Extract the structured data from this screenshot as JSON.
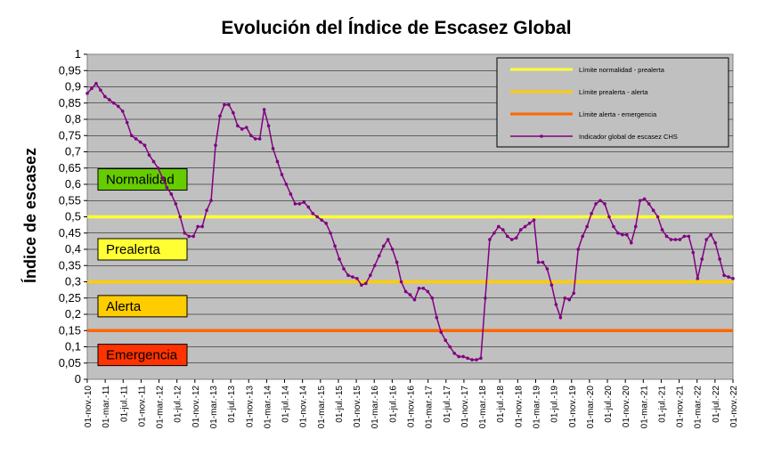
{
  "chart_data": {
    "type": "line",
    "title": "Evolución del Índice de Escasez Global",
    "ylabel": "Índice de escasez",
    "ylim": [
      0,
      1
    ],
    "y_ticks": [
      "0",
      "0,05",
      "0,1",
      "0,15",
      "0,2",
      "0,25",
      "0,3",
      "0,35",
      "0,4",
      "0,45",
      "0,5",
      "0,55",
      "0,6",
      "0,65",
      "0,7",
      "0,75",
      "0,8",
      "0,85",
      "0,9",
      "0,95",
      "1"
    ],
    "x_tick_labels": [
      "01-nov.-10",
      "01-mar.-11",
      "01-jul.-11",
      "01-nov.-11",
      "01-mar.-12",
      "01-jul.-12",
      "01-nov.-12",
      "01-mar.-13",
      "01-jul.-13",
      "01-nov.-13",
      "01-mar.-14",
      "01-jul.-14",
      "01-nov.-14",
      "01-mar.-15",
      "01-jul.-15",
      "01-nov.-15",
      "01-mar.-16",
      "01-jul.-16",
      "01-nov.-16",
      "01-mar.-17",
      "01-jul.-17",
      "01-nov.-17",
      "01-mar.-18",
      "01-jul.-18",
      "01-nov.-18",
      "01-mar.-19",
      "01-jul.-19",
      "01-nov.-19",
      "01-mar.-20",
      "01-jul.-20",
      "01-nov.-20",
      "01-mar.-21",
      "01-jul.-21",
      "01-nov.-21",
      "01-mar.-22",
      "01-jul.-22",
      "01-nov.-22"
    ],
    "grid": true,
    "legend_position": "top-right",
    "thresholds": [
      {
        "name": "Límite normalidad - prealerta",
        "value": 0.5,
        "color": "#ffff33"
      },
      {
        "name": "Límite prealerta - alerta",
        "value": 0.3,
        "color": "#ffcc00"
      },
      {
        "name": "Límite alerta - emergencia",
        "value": 0.15,
        "color": "#ff6600"
      }
    ],
    "series": [
      {
        "name": "Indicador global de escasez CHS",
        "color": "#800080",
        "values": [
          0.88,
          0.895,
          0.91,
          0.89,
          0.87,
          0.86,
          0.85,
          0.84,
          0.825,
          0.79,
          0.75,
          0.74,
          0.73,
          0.72,
          0.69,
          0.67,
          0.65,
          0.62,
          0.59,
          0.57,
          0.54,
          0.5,
          0.45,
          0.44,
          0.44,
          0.47,
          0.47,
          0.52,
          0.55,
          0.72,
          0.81,
          0.845,
          0.845,
          0.82,
          0.78,
          0.77,
          0.775,
          0.75,
          0.74,
          0.74,
          0.83,
          0.78,
          0.71,
          0.67,
          0.63,
          0.6,
          0.57,
          0.54,
          0.54,
          0.545,
          0.53,
          0.51,
          0.5,
          0.49,
          0.48,
          0.45,
          0.41,
          0.37,
          0.34,
          0.32,
          0.315,
          0.31,
          0.29,
          0.295,
          0.32,
          0.35,
          0.38,
          0.41,
          0.43,
          0.4,
          0.36,
          0.3,
          0.27,
          0.26,
          0.245,
          0.28,
          0.28,
          0.27,
          0.25,
          0.19,
          0.145,
          0.12,
          0.1,
          0.08,
          0.07,
          0.07,
          0.065,
          0.06,
          0.06,
          0.065,
          0.25,
          0.43,
          0.45,
          0.47,
          0.46,
          0.44,
          0.43,
          0.435,
          0.46,
          0.47,
          0.48,
          0.49,
          0.36,
          0.36,
          0.34,
          0.29,
          0.23,
          0.19,
          0.25,
          0.245,
          0.265,
          0.4,
          0.44,
          0.47,
          0.51,
          0.54,
          0.55,
          0.54,
          0.5,
          0.47,
          0.45,
          0.445,
          0.445,
          0.42,
          0.47,
          0.55,
          0.555,
          0.54,
          0.52,
          0.5,
          0.46,
          0.44,
          0.43,
          0.43,
          0.43,
          0.44,
          0.44,
          0.39,
          0.31,
          0.37,
          0.43,
          0.445,
          0.42,
          0.37,
          0.32,
          0.315,
          0.31
        ]
      }
    ],
    "zone_labels": [
      {
        "text": "Normalidad",
        "color": "#66cc00",
        "y": 0.615
      },
      {
        "text": "Prealerta",
        "color": "#ffff33",
        "y": 0.4
      },
      {
        "text": "Alerta",
        "color": "#ffcc00",
        "y": 0.225
      },
      {
        "text": "Emergencia",
        "color": "#ff3300",
        "y": 0.075
      }
    ]
  }
}
